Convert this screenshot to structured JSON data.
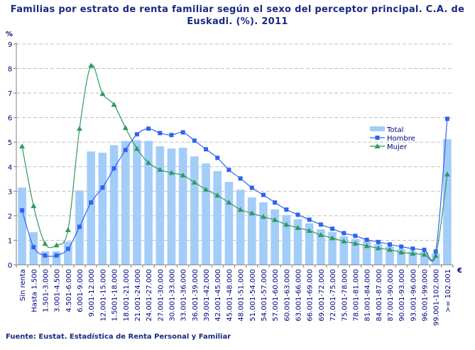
{
  "chart_data": {
    "type": "bar+line",
    "title": "Familias por estrato de renta familiar según el sexo del perceptor principal. C.A. de Euskadi. (%). 2011",
    "ylabel": "%",
    "xlabel": "€",
    "ylim": [
      0,
      9
    ],
    "yticks": [
      "0",
      "1",
      "2",
      "3",
      "4",
      "5",
      "6",
      "7",
      "8",
      "9"
    ],
    "grid": true,
    "legend_position": "right",
    "categories": [
      "Sin renta",
      "Hasta 1.500",
      "1.501-3.000",
      "3.001-4.500",
      "4.501-6.000",
      "6.001-9.000",
      "9.001-12.000",
      "12.001-15.000",
      "1.5001-18.000",
      "18.001-21.000",
      "21.001-24.000",
      "24.001-27.000",
      "27.001-30.000",
      "30.001-33.000",
      "33.001-36.000",
      "36.001-39.000",
      "39.001-42.000",
      "42.001-45.000",
      "45.001-48.000",
      "48.001-51.000",
      "51.001-54.000",
      "54.001-57.000",
      "57.001-60.000",
      "60.001-63.000",
      "63.001-66.000",
      "66.001-69.000",
      "69.001-72.000",
      "72.001-75.000",
      "75.001-78.000",
      "78.001-81.000",
      "81.001-84.000",
      "84.001-87.000",
      "87.001-90.000",
      "90.001-93.000",
      "93.001-96.000",
      "96.001-99.000",
      "99.001-102.000",
      ">= 102.001"
    ],
    "series": [
      {
        "name": "Total",
        "type": "bar",
        "color": "#a3cdf9",
        "values": [
          3.15,
          1.33,
          0.55,
          0.55,
          0.95,
          3.03,
          4.62,
          4.57,
          4.88,
          5.05,
          5.08,
          5.05,
          4.83,
          4.74,
          4.77,
          4.42,
          4.13,
          3.82,
          3.38,
          3.06,
          2.75,
          2.55,
          2.26,
          2.03,
          1.86,
          1.69,
          1.45,
          1.34,
          1.16,
          1.05,
          0.95,
          0.84,
          0.75,
          0.64,
          0.55,
          0.52,
          0.46,
          5.12
        ]
      },
      {
        "name": "Hombre",
        "type": "line",
        "marker": "square",
        "color": "#2f62f0",
        "values": [
          2.22,
          0.72,
          0.38,
          0.38,
          0.65,
          1.55,
          2.54,
          3.15,
          3.93,
          4.68,
          5.32,
          5.55,
          5.37,
          5.29,
          5.4,
          5.06,
          4.71,
          4.36,
          3.87,
          3.52,
          3.14,
          2.85,
          2.54,
          2.25,
          2.04,
          1.84,
          1.64,
          1.47,
          1.29,
          1.18,
          1.02,
          0.93,
          0.83,
          0.74,
          0.66,
          0.61,
          0.54,
          5.95
        ]
      },
      {
        "name": "Mujer",
        "type": "line",
        "marker": "triangle",
        "color": "#2e9a5e",
        "values": [
          4.83,
          2.4,
          0.86,
          0.8,
          1.42,
          5.55,
          8.12,
          6.97,
          6.53,
          5.58,
          4.73,
          4.16,
          3.88,
          3.75,
          3.65,
          3.36,
          3.07,
          2.83,
          2.54,
          2.25,
          2.1,
          1.96,
          1.83,
          1.64,
          1.51,
          1.39,
          1.22,
          1.09,
          0.96,
          0.87,
          0.77,
          0.68,
          0.62,
          0.51,
          0.46,
          0.42,
          0.37,
          3.69
        ]
      }
    ],
    "source": "Fuente: Eustat. Estadística de Renta Personal y Familiar"
  }
}
